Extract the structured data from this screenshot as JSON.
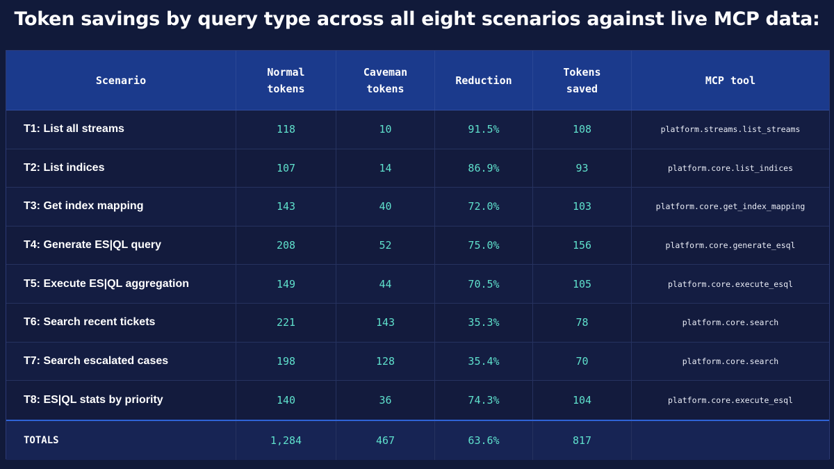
{
  "title": "Token savings by query type across all eight scenarios against live MCP data:",
  "table": {
    "headers": [
      "Scenario",
      "Normal\ntokens",
      "Caveman\ntokens",
      "Reduction",
      "Tokens\nsaved",
      "MCP tool"
    ],
    "rows": [
      {
        "scenario": "T1: List all streams",
        "normal": "118",
        "caveman": "10",
        "reduction": "91.5%",
        "saved": "108",
        "tool": "platform.streams.list_streams"
      },
      {
        "scenario": "T2: List indices",
        "normal": "107",
        "caveman": "14",
        "reduction": "86.9%",
        "saved": "93",
        "tool": "platform.core.list_indices"
      },
      {
        "scenario": "T3: Get index mapping",
        "normal": "143",
        "caveman": "40",
        "reduction": "72.0%",
        "saved": "103",
        "tool": "platform.core.get_index_mapping"
      },
      {
        "scenario": "T4: Generate ES|QL query",
        "normal": "208",
        "caveman": "52",
        "reduction": "75.0%",
        "saved": "156",
        "tool": "platform.core.generate_esql"
      },
      {
        "scenario": "T5: Execute ES|QL aggregation",
        "normal": "149",
        "caveman": "44",
        "reduction": "70.5%",
        "saved": "105",
        "tool": "platform.core.execute_esql"
      },
      {
        "scenario": "T6: Search recent tickets",
        "normal": "221",
        "caveman": "143",
        "reduction": "35.3%",
        "saved": "78",
        "tool": "platform.core.search"
      },
      {
        "scenario": "T7: Search escalated cases",
        "normal": "198",
        "caveman": "128",
        "reduction": "35.4%",
        "saved": "70",
        "tool": "platform.core.search"
      },
      {
        "scenario": "T8: ES|QL stats by priority",
        "normal": "140",
        "caveman": "36",
        "reduction": "74.3%",
        "saved": "104",
        "tool": "platform.core.execute_esql"
      }
    ],
    "totals": {
      "label": "TOTALS",
      "normal": "1,284",
      "caveman": "467",
      "reduction": "63.6%",
      "saved": "817",
      "tool": ""
    }
  },
  "colors": {
    "background": "#111a3a",
    "header": "#1b3a8c",
    "accent_number": "#5fe0cc",
    "totals_divider": "#2f63d6"
  }
}
